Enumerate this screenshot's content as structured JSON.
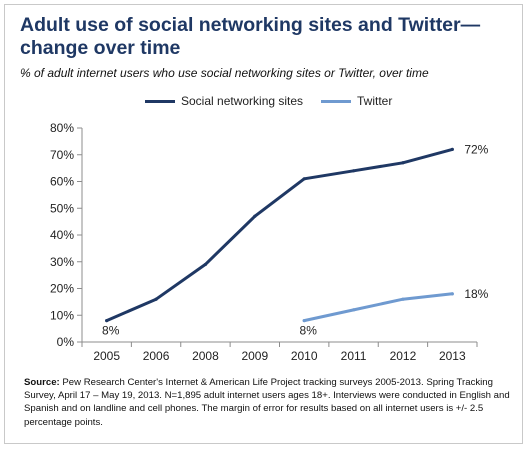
{
  "chart_data": {
    "type": "line",
    "title": "Adult use of social networking sites and Twitter—change over time",
    "subtitle": "% of adult internet users who use social networking sites or Twitter, over time",
    "categories": [
      "2005",
      "2006",
      "2008",
      "2009",
      "2010",
      "2011",
      "2012",
      "2013"
    ],
    "series": [
      {
        "name": "Social networking sites",
        "color": "#1f3864",
        "values": [
          8,
          16,
          29,
          47,
          61,
          64,
          67,
          72
        ]
      },
      {
        "name": "Twitter",
        "color": "#6f9ad0",
        "values": [
          null,
          null,
          null,
          null,
          8,
          12,
          16,
          18
        ]
      }
    ],
    "data_labels": [
      {
        "series": 0,
        "index": 0,
        "text": "8%",
        "pos": "below"
      },
      {
        "series": 0,
        "index": 7,
        "text": "72%",
        "pos": "right"
      },
      {
        "series": 1,
        "index": 4,
        "text": "8%",
        "pos": "below"
      },
      {
        "series": 1,
        "index": 7,
        "text": "18%",
        "pos": "right"
      }
    ],
    "y_ticks": [
      "0%",
      "10%",
      "20%",
      "30%",
      "40%",
      "50%",
      "60%",
      "70%",
      "80%"
    ],
    "ylim": [
      0,
      80
    ],
    "xlabel": "",
    "ylabel": "",
    "grid": false,
    "legend_position": "top"
  },
  "source": {
    "label": "Source:",
    "text": "Pew Research Center's Internet & American Life Project tracking surveys 2005-2013. Spring Tracking Survey, April 17 – May 19, 2013. N=1,895 adult internet users ages 18+. Interviews were conducted in English and Spanish and on landline and cell phones.  The margin of error for results based on all internet users is +/- 2.5 percentage points."
  }
}
